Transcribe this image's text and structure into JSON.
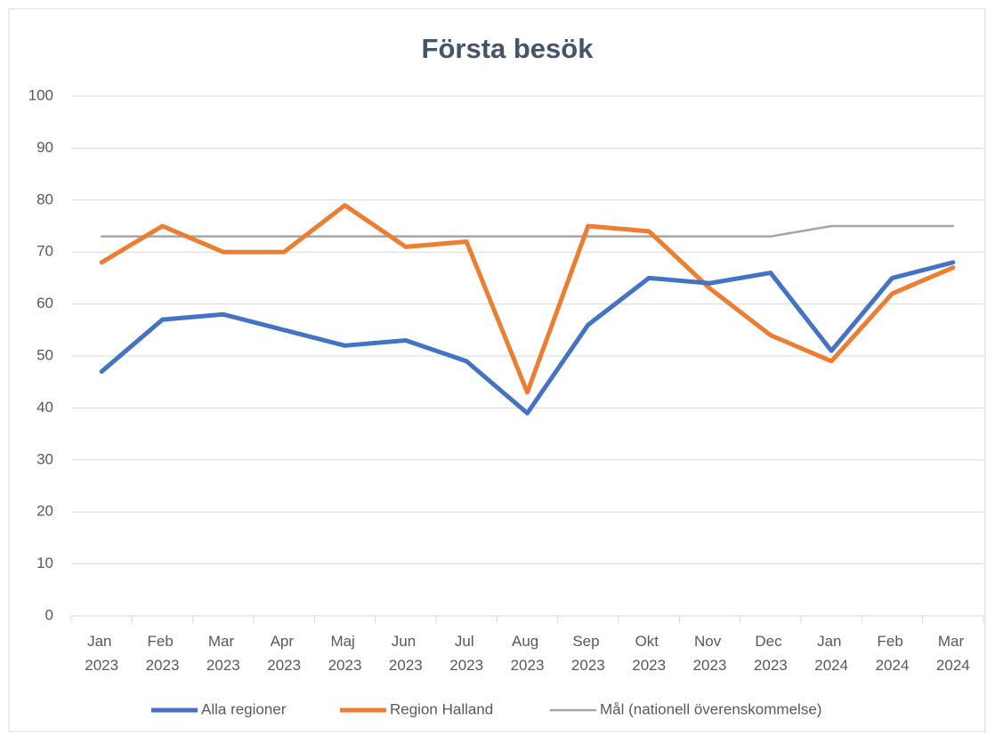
{
  "chart_data": {
    "type": "line",
    "title": "Första besök",
    "categories": [
      "Jan 2023",
      "Feb 2023",
      "Mar 2023",
      "Apr 2023",
      "Maj 2023",
      "Jun 2023",
      "Jul 2023",
      "Aug 2023",
      "Sep 2023",
      "Okt 2023",
      "Nov 2023",
      "Dec 2023",
      "Jan 2024",
      "Feb 2024",
      "Mar 2024"
    ],
    "series": [
      {
        "name": "Alla regioner",
        "color": "#4472c4",
        "values": [
          47,
          57,
          58,
          55,
          52,
          53,
          49,
          39,
          56,
          65,
          64,
          66,
          51,
          65,
          68
        ]
      },
      {
        "name": "Region Halland",
        "color": "#ed7d31",
        "values": [
          68,
          75,
          70,
          70,
          79,
          71,
          72,
          43,
          75,
          74,
          63,
          54,
          49,
          62,
          67
        ]
      },
      {
        "name": "Mål (nationell överenskommelse)",
        "color": "#a5a5a5",
        "values": [
          73,
          73,
          73,
          73,
          73,
          73,
          73,
          73,
          73,
          73,
          73,
          73,
          75,
          75,
          75
        ]
      }
    ],
    "ylim": [
      0,
      100
    ],
    "yticks": [
      0,
      10,
      20,
      30,
      40,
      50,
      60,
      70,
      80,
      90,
      100
    ],
    "grid": true,
    "legend": "bottom"
  }
}
